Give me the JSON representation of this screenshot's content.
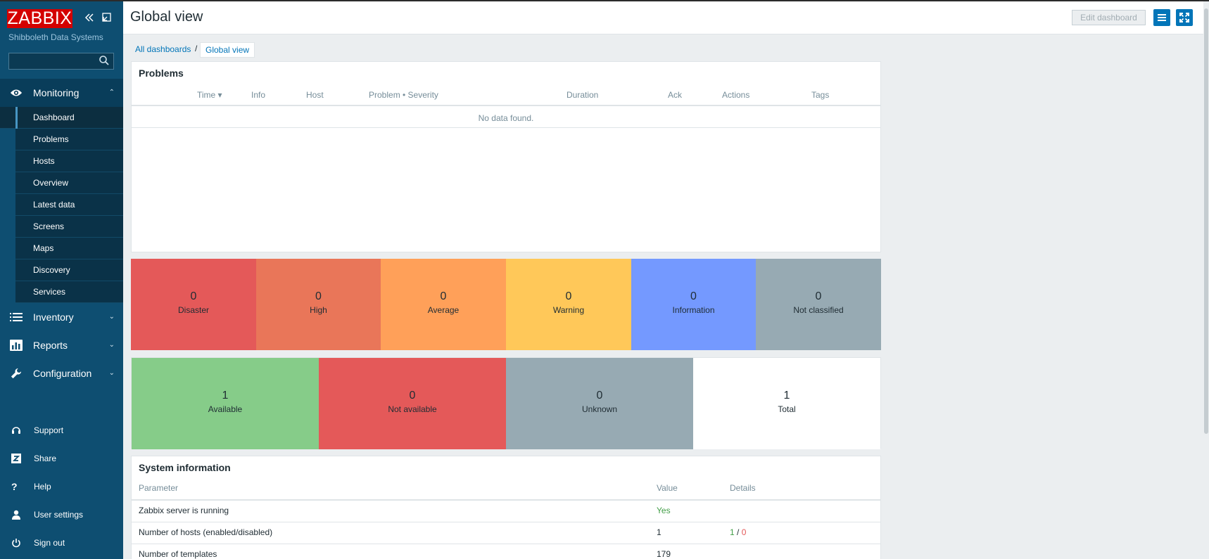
{
  "app": {
    "logo": "ZABBIX",
    "org": "Shibboleth Data Systems"
  },
  "sidebar": {
    "search_placeholder": "",
    "menus": [
      {
        "label": "Monitoring",
        "icon": "eye-icon",
        "open": true
      },
      {
        "label": "Inventory",
        "icon": "list-icon",
        "open": false
      },
      {
        "label": "Reports",
        "icon": "bar-chart-icon",
        "open": false
      },
      {
        "label": "Configuration",
        "icon": "wrench-icon",
        "open": false
      }
    ],
    "monitoring_items": [
      "Dashboard",
      "Problems",
      "Hosts",
      "Overview",
      "Latest data",
      "Screens",
      "Maps",
      "Discovery",
      "Services"
    ],
    "bottom": [
      "Support",
      "Share",
      "Help",
      "User settings",
      "Sign out"
    ]
  },
  "header": {
    "title": "Global view",
    "edit_label": "Edit dashboard"
  },
  "breadcrumb": {
    "root": "All dashboards",
    "separator": "/",
    "current": "Global view"
  },
  "problems": {
    "title": "Problems",
    "columns": [
      "Time ▾",
      "Info",
      "Host",
      "Problem • Severity",
      "Duration",
      "Ack",
      "Actions",
      "Tags"
    ],
    "empty": "No data found."
  },
  "severity": [
    {
      "count": "0",
      "label": "Disaster",
      "color": "#e45959"
    },
    {
      "count": "0",
      "label": "High",
      "color": "#e97659"
    },
    {
      "count": "0",
      "label": "Average",
      "color": "#ffa059"
    },
    {
      "count": "0",
      "label": "Warning",
      "color": "#ffc859"
    },
    {
      "count": "0",
      "label": "Information",
      "color": "#7499ff"
    },
    {
      "count": "0",
      "label": "Not classified",
      "color": "#97aab3"
    }
  ],
  "availability": [
    {
      "count": "1",
      "label": "Available",
      "color": "#86cc89"
    },
    {
      "count": "0",
      "label": "Not available",
      "color": "#e45959"
    },
    {
      "count": "0",
      "label": "Unknown",
      "color": "#97aab3"
    },
    {
      "count": "1",
      "label": "Total",
      "color": "#ffffff"
    }
  ],
  "system_info": {
    "title": "System information",
    "headers": {
      "parameter": "Parameter",
      "value": "Value",
      "details": "Details"
    },
    "rows": [
      {
        "parameter": "Zabbix server is running",
        "value": "Yes",
        "details_enabled": "",
        "details_sep": "",
        "details_disabled": ""
      },
      {
        "parameter": "Number of hosts (enabled/disabled)",
        "value": "1",
        "details_enabled": "1",
        "details_sep": "/",
        "details_disabled": "0"
      },
      {
        "parameter": "Number of templates",
        "value": "179",
        "details_enabled": "",
        "details_sep": "",
        "details_disabled": ""
      }
    ]
  },
  "colors": {
    "accent": "#0275b8",
    "sidebar": "#0e4e71",
    "ok": "#429e47",
    "bad": "#e45959"
  }
}
